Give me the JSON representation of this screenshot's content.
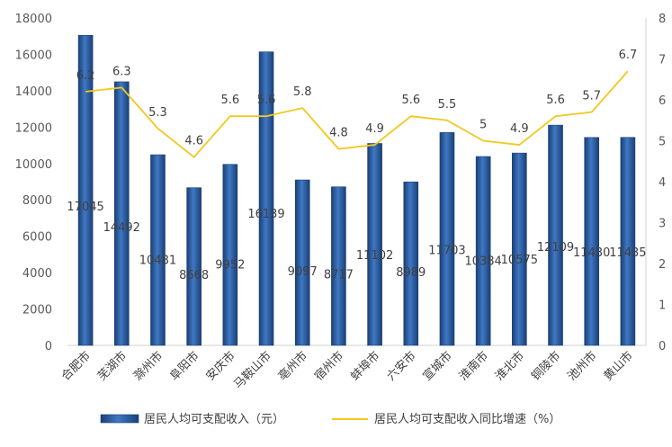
{
  "chart_data": {
    "type": "bar",
    "categories": [
      "合肥市",
      "芜湖市",
      "滁州市",
      "阜阳市",
      "安庆市",
      "马鞍山市",
      "亳州市",
      "宿州市",
      "蚌埠市",
      "六安市",
      "宣城市",
      "淮南市",
      "淮北市",
      "铜陵市",
      "池州市",
      "黄山市"
    ],
    "series": [
      {
        "name": "居民人均可支配收入（元）",
        "type": "bar",
        "axis": "left",
        "values": [
          17045,
          14492,
          10481,
          8668,
          9952,
          16139,
          9097,
          8717,
          11102,
          8989,
          11703,
          10384,
          10575,
          12109,
          11430,
          11435
        ],
        "labels": [
          "17045",
          "14492",
          "10481",
          "8668",
          "9952",
          "16139",
          "9097",
          "8717",
          "11102",
          "8989",
          "11703",
          "10384",
          "10575",
          "12109",
          "11430",
          "11435"
        ],
        "color": "#2a5fa6"
      },
      {
        "name": "居民人均可支配收入同比增速（%）",
        "type": "line",
        "axis": "right",
        "values": [
          6.2,
          6.3,
          5.3,
          4.6,
          5.6,
          5.6,
          5.8,
          4.8,
          4.9,
          5.6,
          5.5,
          5.0,
          4.9,
          5.6,
          5.7,
          6.7
        ],
        "labels": [
          "6.2",
          "6.3",
          "5.3",
          "4.6",
          "5.6",
          "5.6",
          "5.8",
          "4.8",
          "4.9",
          "5.6",
          "5.5",
          "5",
          "4.9",
          "5.6",
          "5.7",
          "6.7"
        ],
        "color": "#f2c81e"
      }
    ],
    "ylim_left": [
      0,
      18000
    ],
    "yticks_left": [
      "0",
      "2000",
      "4000",
      "6000",
      "8000",
      "10000",
      "12000",
      "14000",
      "16000",
      "18000"
    ],
    "ylim_right": [
      0,
      8
    ],
    "yticks_right": [
      "0",
      "1",
      "2",
      "3",
      "4",
      "5",
      "6",
      "7",
      "8"
    ],
    "grid": "none",
    "legend_position": "bottom"
  }
}
